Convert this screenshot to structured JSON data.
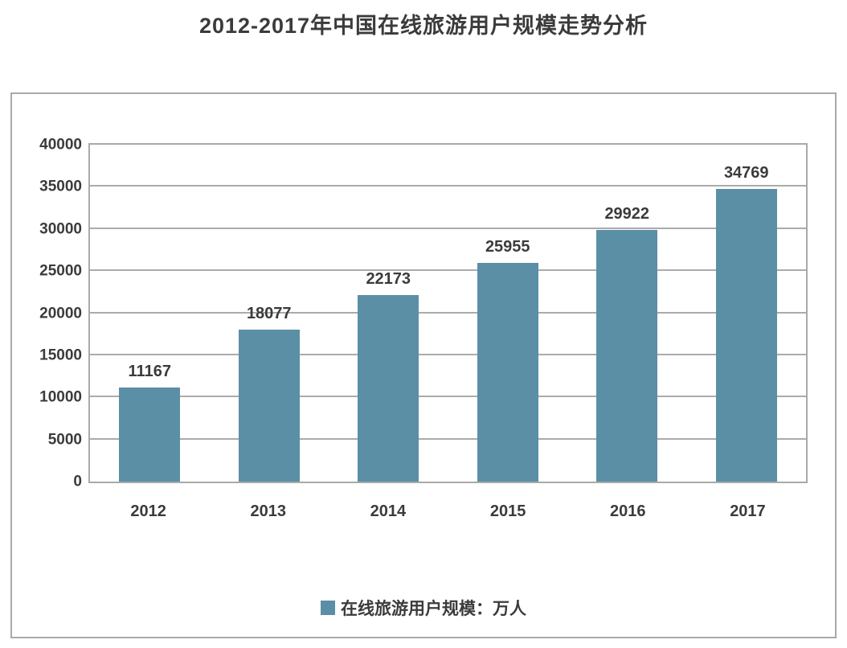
{
  "chart_data": {
    "type": "bar",
    "title": "2012-2017年中国在线旅游用户规模走势分析",
    "categories": [
      "2012",
      "2013",
      "2014",
      "2015",
      "2016",
      "2017"
    ],
    "values": [
      11167,
      18077,
      22173,
      25955,
      29922,
      34769
    ],
    "series": [
      {
        "name": "在线旅游用户规模：万人",
        "values": [
          11167,
          18077,
          22173,
          25955,
          29922,
          34769
        ]
      }
    ],
    "legend": [
      {
        "label": "在线旅游用户规模：万人"
      }
    ],
    "legend_position": "bottom",
    "xlabel": "",
    "ylabel": "",
    "ylim": [
      0,
      40000
    ],
    "yticks": [
      0,
      5000,
      10000,
      15000,
      20000,
      25000,
      30000,
      35000,
      40000
    ],
    "grid": true,
    "colors": {
      "bar": "#5B8FA6",
      "grid": "#ABABAB",
      "frame": "#A9A9A9",
      "text": "#3B3B3B",
      "background": "#FFFFFF"
    }
  }
}
